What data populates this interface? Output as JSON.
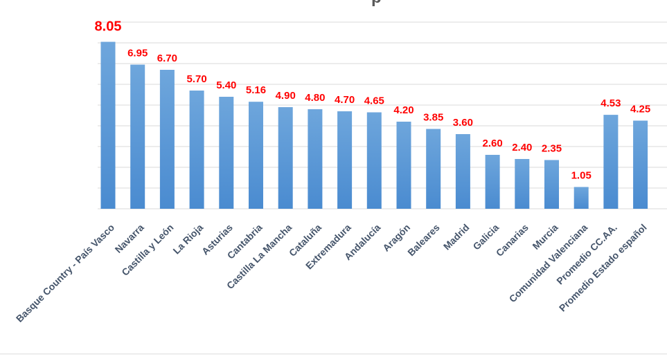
{
  "chart_data": {
    "type": "bar",
    "title_fragment": "p",
    "categories": [
      "Basque Country - País Vasco",
      "Navarra",
      "Castilla y León",
      "La Rioja",
      "Asturias",
      "Cantabria",
      "Castilla La Mancha",
      "Cataluña",
      "Extremadura",
      "Andalucía",
      "Aragón",
      "Baleares",
      "Madrid",
      "Galicia",
      "Canarias",
      "Murcia",
      "Comunidad Valenciana",
      "Promedio CC.AA.",
      "Promedio Estado español"
    ],
    "values": [
      8.05,
      6.95,
      6.7,
      5.7,
      5.4,
      5.16,
      4.9,
      4.8,
      4.7,
      4.65,
      4.2,
      3.85,
      3.6,
      2.6,
      2.4,
      2.35,
      1.05,
      4.53,
      4.25
    ],
    "value_labels": [
      "8.05",
      "6.95",
      "6.70",
      "5.70",
      "5.40",
      "5.16",
      "4.90",
      "4.80",
      "4.70",
      "4.65",
      "4.20",
      "3.85",
      "3.60",
      "2.60",
      "2.40",
      "2.35",
      "1.05",
      "4.53",
      "4.25"
    ],
    "ylim": [
      0,
      9
    ],
    "grid": true,
    "legend": "none",
    "bar_color": "#5b9bd5",
    "label_color": "#ff0000",
    "category_color": "#44546a",
    "gridline_color": "#d9d9d9"
  }
}
